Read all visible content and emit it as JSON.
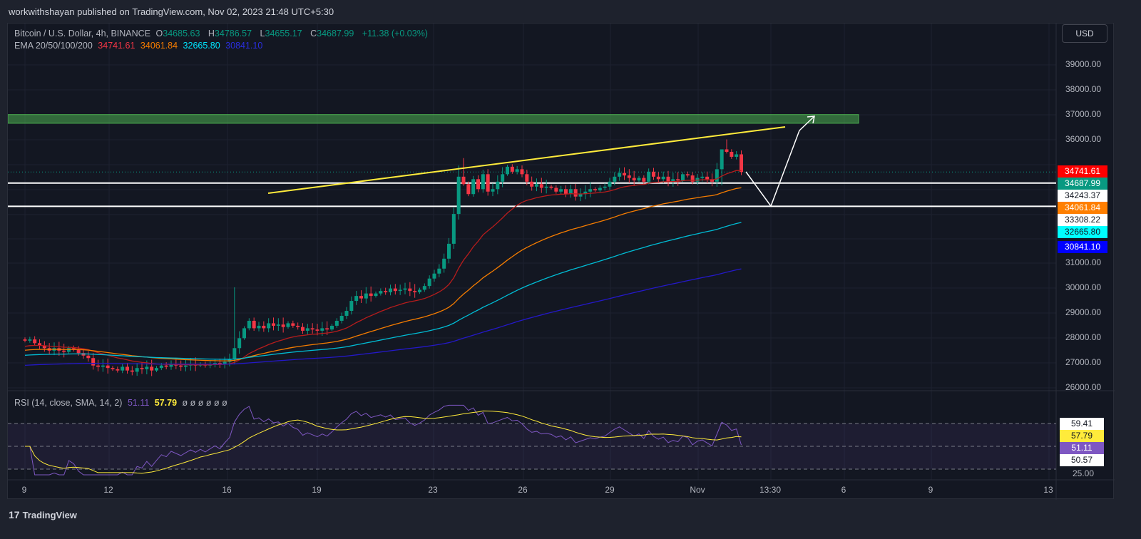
{
  "header": {
    "published": "workwithshayan published on TradingView.com, Nov 02, 2023 21:48 UTC+5:30"
  },
  "legend": {
    "symbol": "Bitcoin / U.S. Dollar, 4h, BINANCE",
    "o_label": "O",
    "o": "34685.63",
    "h_label": "H",
    "h": "34786.57",
    "l_label": "L",
    "l": "34655.17",
    "c_label": "C",
    "c": "34687.99",
    "change": "+11.38 (+0.03%)",
    "ema_label": "EMA 20/50/100/200",
    "ema20": "34741.61",
    "ema50": "34061.84",
    "ema100": "32665.80",
    "ema200": "30841.10",
    "rsi_label": "RSI (14, close, SMA, 14, 2)",
    "rsi": "51.11",
    "rsi_sma": "57.79",
    "rsi_extra": "ø ø ø ø ø ø"
  },
  "currency": "USD",
  "colors": {
    "up": "#089981",
    "down": "#f23645",
    "ema20": "#b71c1c",
    "ema50": "#f57c00",
    "ema100": "#00bcd4",
    "ema200": "#2418c8",
    "rsi": "#7e57c2",
    "rsi_sma": "#ffeb3b",
    "trend": "#ffeb3b",
    "zone": "#4caf50"
  },
  "price_ticks": [
    "39000.00",
    "38000.00",
    "37000.00",
    "36000.00",
    "31000.00",
    "30000.00",
    "29000.00",
    "28000.00",
    "27000.00",
    "26000.00"
  ],
  "price_labels": [
    {
      "text": "34741.61",
      "bg": "#ff0000",
      "fg": "#ffffff"
    },
    {
      "text": "34687.99",
      "bg": "#089981",
      "fg": "#ffffff"
    },
    {
      "text": "34243.37",
      "bg": "#ffffff",
      "fg": "#131722"
    },
    {
      "text": "34061.84",
      "bg": "#ff7f00",
      "fg": "#ffffff"
    },
    {
      "text": "33308.22",
      "bg": "#ffffff",
      "fg": "#131722"
    },
    {
      "text": "32665.80",
      "bg": "#00ffff",
      "fg": "#131722"
    },
    {
      "text": "30841.10",
      "bg": "#0000ff",
      "fg": "#ffffff"
    }
  ],
  "rsi_labels": [
    {
      "text": "59.41",
      "bg": "#ffffff",
      "fg": "#131722"
    },
    {
      "text": "57.79",
      "bg": "#ffeb3b",
      "fg": "#131722"
    },
    {
      "text": "51.11",
      "bg": "#7e57c2",
      "fg": "#ffffff"
    },
    {
      "text": "50.57",
      "bg": "#ffffff",
      "fg": "#131722"
    }
  ],
  "rsi_tick": "25.00",
  "time_ticks": [
    "9",
    "12",
    "16",
    "19",
    "23",
    "26",
    "29",
    "Nov",
    "13:30",
    "6",
    "9",
    "13"
  ],
  "brand": "TradingView",
  "chart_data": {
    "type": "candlestick",
    "interval": "4h",
    "start": "Oct 9",
    "levels": [
      34243.37,
      33308.22
    ],
    "zone": [
      36700,
      37000
    ],
    "target": 37000,
    "closes": [
      27900,
      27950,
      27800,
      27700,
      27600,
      27500,
      27600,
      27500,
      27450,
      27600,
      27550,
      27400,
      27300,
      27200,
      26900,
      26850,
      26900,
      26800,
      26750,
      26700,
      26850,
      26700,
      26650,
      26800,
      26750,
      26850,
      26700,
      26800,
      26900,
      26850,
      26950,
      26900,
      26850,
      26900,
      26950,
      26900,
      26950,
      26900,
      26950,
      27000,
      26950,
      27050,
      27150,
      27600,
      28000,
      28400,
      28700,
      28400,
      28500,
      28400,
      28600,
      28500,
      28550,
      28450,
      28600,
      28500,
      28450,
      28300,
      28400,
      28350,
      28300,
      28400,
      28350,
      28500,
      28700,
      28900,
      29100,
      29500,
      29700,
      29600,
      29800,
      29700,
      29800,
      29900,
      29850,
      30000,
      29900,
      29950,
      30000,
      29900,
      29850,
      29950,
      30100,
      30400,
      30600,
      30800,
      31200,
      31800,
      33000,
      34500,
      34200,
      33800,
      34400,
      34000,
      34600,
      33900,
      34000,
      34300,
      34600,
      34900,
      34700,
      34800,
      34600,
      34300,
      34100,
      34200,
      34050,
      34100,
      34050,
      33900,
      34000,
      33800,
      34000,
      33700,
      33800,
      33900,
      34000,
      33950,
      34050,
      34100,
      34300,
      34500,
      34650,
      34550,
      34450,
      34350,
      34450,
      34300,
      34700,
      34500,
      34400,
      34500,
      34300,
      34400,
      34350,
      34600,
      34550,
      34300,
      34450,
      34500,
      34400,
      34300,
      34800,
      35600,
      35500,
      35300,
      35400,
      34688
    ]
  }
}
